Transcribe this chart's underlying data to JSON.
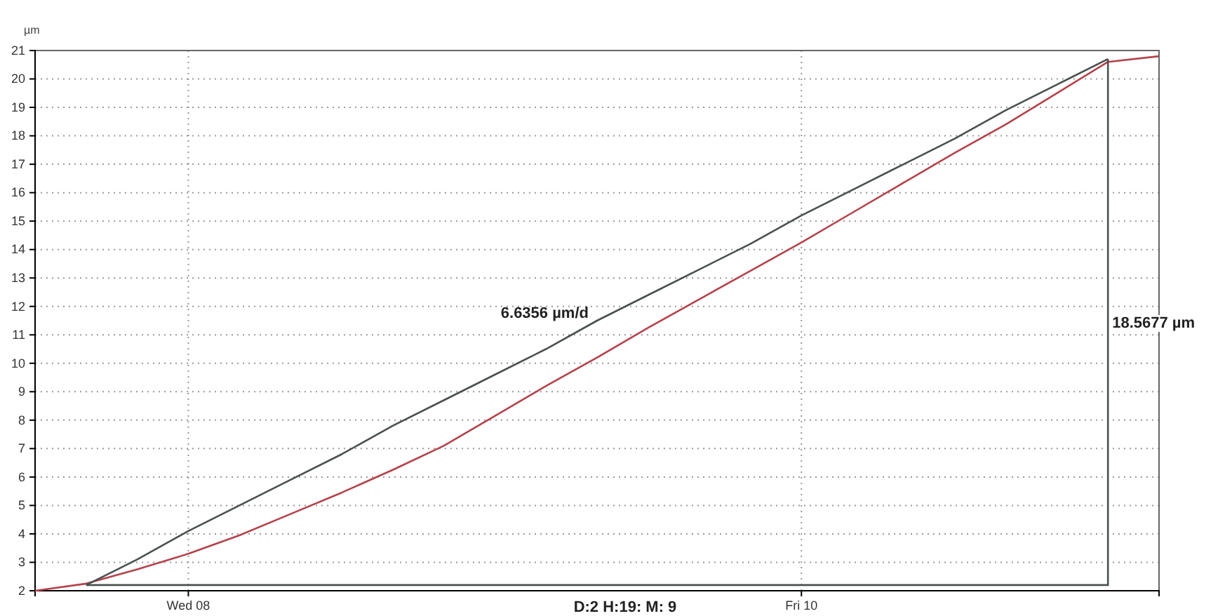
{
  "chart_data": {
    "type": "line",
    "ylabel": "µm",
    "categories": [
      null,
      null,
      null,
      "Wed 08",
      null,
      null,
      null,
      null,
      null,
      null,
      null,
      null,
      null,
      null,
      null,
      "Fri 10",
      null,
      null,
      null,
      null,
      null,
      null,
      null
    ],
    "ylim": [
      2,
      21
    ],
    "yticks": [
      2,
      3,
      4,
      5,
      6,
      7,
      8,
      9,
      10,
      11,
      12,
      13,
      14,
      15,
      16,
      17,
      18,
      19,
      20,
      21
    ],
    "grid": true,
    "marker": "none",
    "line_style": "solid",
    "series": [
      {
        "color": "#b5424a",
        "values": [
          2.0,
          2.25,
          2.75,
          3.3,
          3.95,
          4.7,
          5.45,
          6.25,
          7.1,
          8.15,
          9.2,
          10.2,
          11.25,
          12.25,
          13.25,
          14.25,
          15.3,
          16.35,
          17.4,
          18.4,
          19.5,
          20.6,
          20.8
        ]
      },
      {
        "color": "#4a5050",
        "values": [
          null,
          2.2,
          3.1,
          4.1,
          5.0,
          5.9,
          6.8,
          7.8,
          8.7,
          9.6,
          10.5,
          11.5,
          12.4,
          13.3,
          14.2,
          15.2,
          16.1,
          17.0,
          17.9,
          18.9,
          19.8,
          20.7,
          null
        ]
      }
    ],
    "annotations": [
      "6.6356 µm/d",
      "18.5677 µm",
      "D:2 H:19: M: 9"
    ]
  }
}
